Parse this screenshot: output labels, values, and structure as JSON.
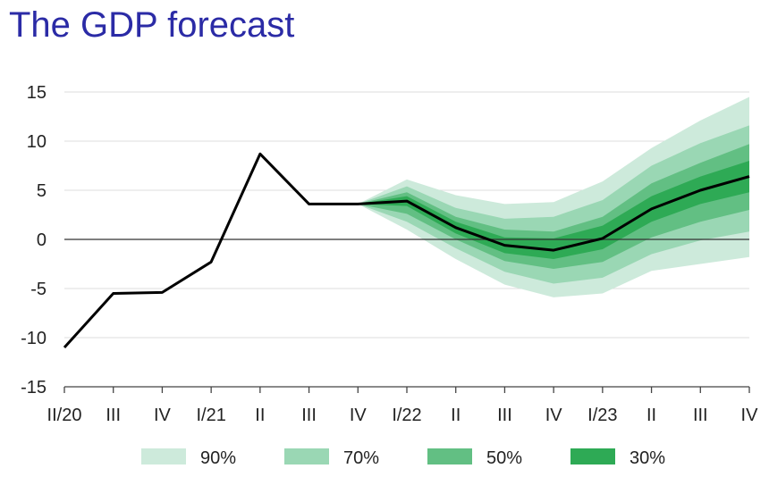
{
  "chart_data": {
    "type": "line",
    "title": "The GDP forecast",
    "xlabel": "",
    "ylabel": "",
    "ylim": [
      -15,
      15
    ],
    "yticks": [
      -15,
      -10,
      -5,
      0,
      5,
      10,
      15
    ],
    "grid": true,
    "categories": [
      "II/20",
      "III",
      "IV",
      "I/21",
      "II",
      "III",
      "IV",
      "I/22",
      "II",
      "III",
      "IV",
      "I/23",
      "II",
      "III",
      "IV"
    ],
    "series": [
      {
        "values": [
          -11.0,
          -5.5,
          -5.4,
          -2.3,
          8.7,
          3.6,
          3.6,
          3.9,
          1.2,
          -0.6,
          -1.1,
          0.1,
          3.1,
          5.0,
          6.4
        ]
      }
    ],
    "fan": {
      "start_index": 6,
      "bands": [
        {
          "name": "90%",
          "color": "#cdeadb",
          "lower": [
            3.6,
            1.0,
            -2.0,
            -4.6,
            -5.9,
            -5.5,
            -3.2,
            -2.5,
            -1.8
          ],
          "upper": [
            3.6,
            6.1,
            4.5,
            3.6,
            3.8,
            5.9,
            9.3,
            12.1,
            14.5
          ]
        },
        {
          "name": "70%",
          "color": "#9ad7b4",
          "lower": [
            3.6,
            1.8,
            -0.9,
            -3.3,
            -4.5,
            -3.9,
            -1.5,
            -0.1,
            0.8
          ],
          "upper": [
            3.6,
            5.4,
            3.2,
            2.1,
            2.3,
            4.0,
            7.5,
            9.8,
            11.6
          ]
        },
        {
          "name": "50%",
          "color": "#62bf83",
          "lower": [
            3.6,
            2.6,
            0.0,
            -2.2,
            -3.0,
            -2.3,
            0.2,
            1.8,
            3.0
          ],
          "upper": [
            3.6,
            4.8,
            2.3,
            1.0,
            0.8,
            2.3,
            5.7,
            7.8,
            9.7
          ]
        },
        {
          "name": "30%",
          "color": "#2eaa55",
          "lower": [
            3.6,
            3.4,
            0.6,
            -1.4,
            -2.0,
            -1.0,
            1.8,
            3.6,
            4.8
          ],
          "upper": [
            3.6,
            4.4,
            1.8,
            0.2,
            0.1,
            1.4,
            4.4,
            6.4,
            8.0
          ]
        }
      ]
    },
    "legend": {
      "position": "bottom",
      "entries": [
        "90%",
        "70%",
        "50%",
        "30%"
      ]
    },
    "colors": {
      "line": "#000000",
      "grid": "#dcdcdc",
      "zero_line": "#333333",
      "title": "#2b2ba6"
    }
  }
}
